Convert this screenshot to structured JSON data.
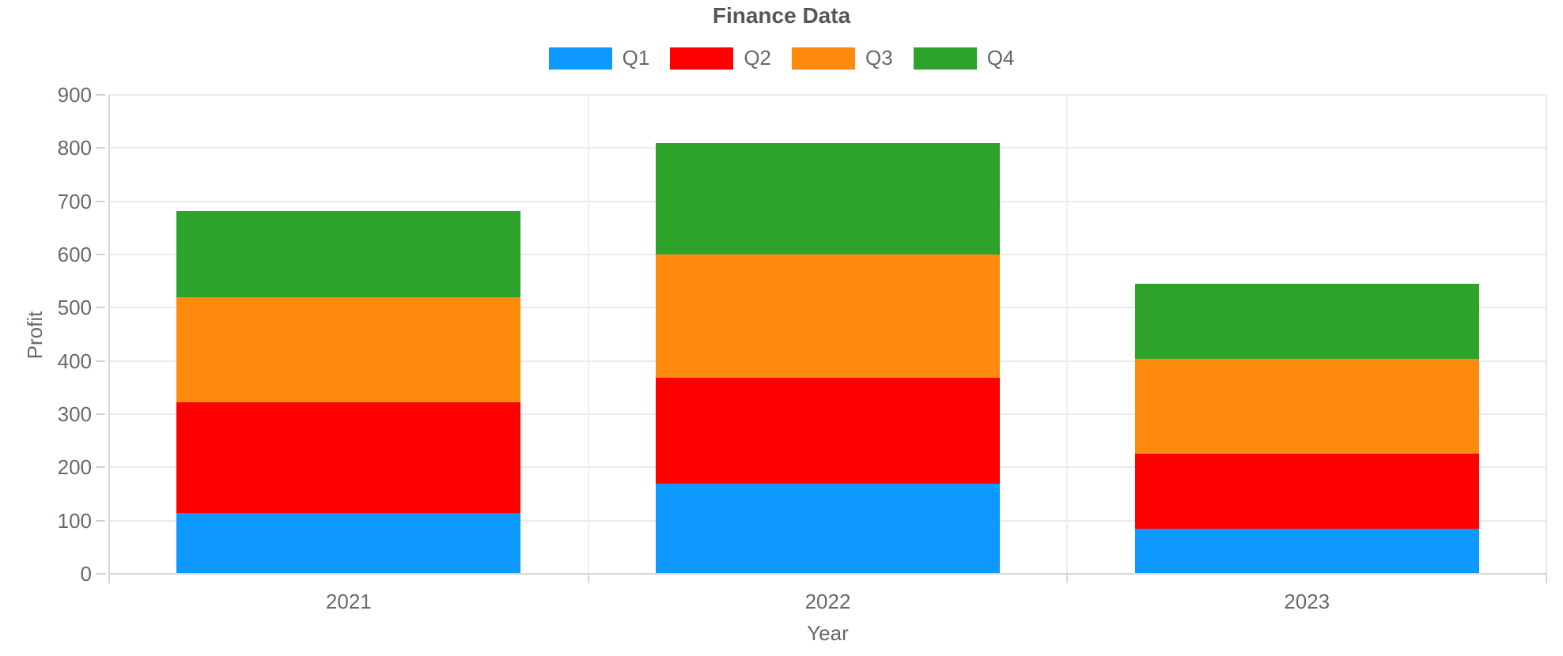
{
  "chart_data": {
    "type": "bar",
    "stacked": true,
    "title": "Finance Data",
    "xlabel": "Year",
    "ylabel": "Profit",
    "categories": [
      "2021",
      "2022",
      "2023"
    ],
    "series": [
      {
        "name": "Q1",
        "color": "#0d99ff",
        "values": [
          114,
          170,
          85
        ]
      },
      {
        "name": "Q2",
        "color": "#ff0000",
        "values": [
          208,
          199,
          141
        ]
      },
      {
        "name": "Q3",
        "color": "#ff8a0e",
        "values": [
          198,
          231,
          178
        ]
      },
      {
        "name": "Q4",
        "color": "#2ea32c",
        "values": [
          162,
          210,
          141
        ]
      }
    ],
    "ylim": [
      0,
      900
    ],
    "yticks": [
      0,
      100,
      200,
      300,
      400,
      500,
      600,
      700,
      800,
      900
    ],
    "grid": true,
    "legend_position": "top"
  }
}
